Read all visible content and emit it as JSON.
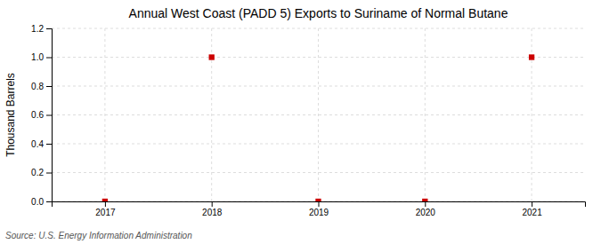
{
  "chart_data": {
    "type": "scatter",
    "title": "Annual West Coast (PADD 5) Exports to Suriname of Normal Butane",
    "ylabel": "Thousand Barrels",
    "annotations": [
      "Source: U.S. Energy Information Administration"
    ],
    "x": [
      2017,
      2018,
      2019,
      2020,
      2021
    ],
    "values": [
      0,
      1,
      0,
      0,
      1
    ],
    "color": "#cc0000",
    "marker": "square",
    "xlim": [
      2016.5,
      2021.5
    ],
    "xticks": [
      2017,
      2018,
      2019,
      2020,
      2021
    ],
    "ylim": [
      0,
      1.2
    ],
    "yticks": [
      {
        "value": 0,
        "label": "0.0"
      },
      0.2,
      0.4,
      0.6,
      0.8,
      {
        "value": 1,
        "label": "1.0"
      },
      1.2
    ],
    "grid": true
  }
}
